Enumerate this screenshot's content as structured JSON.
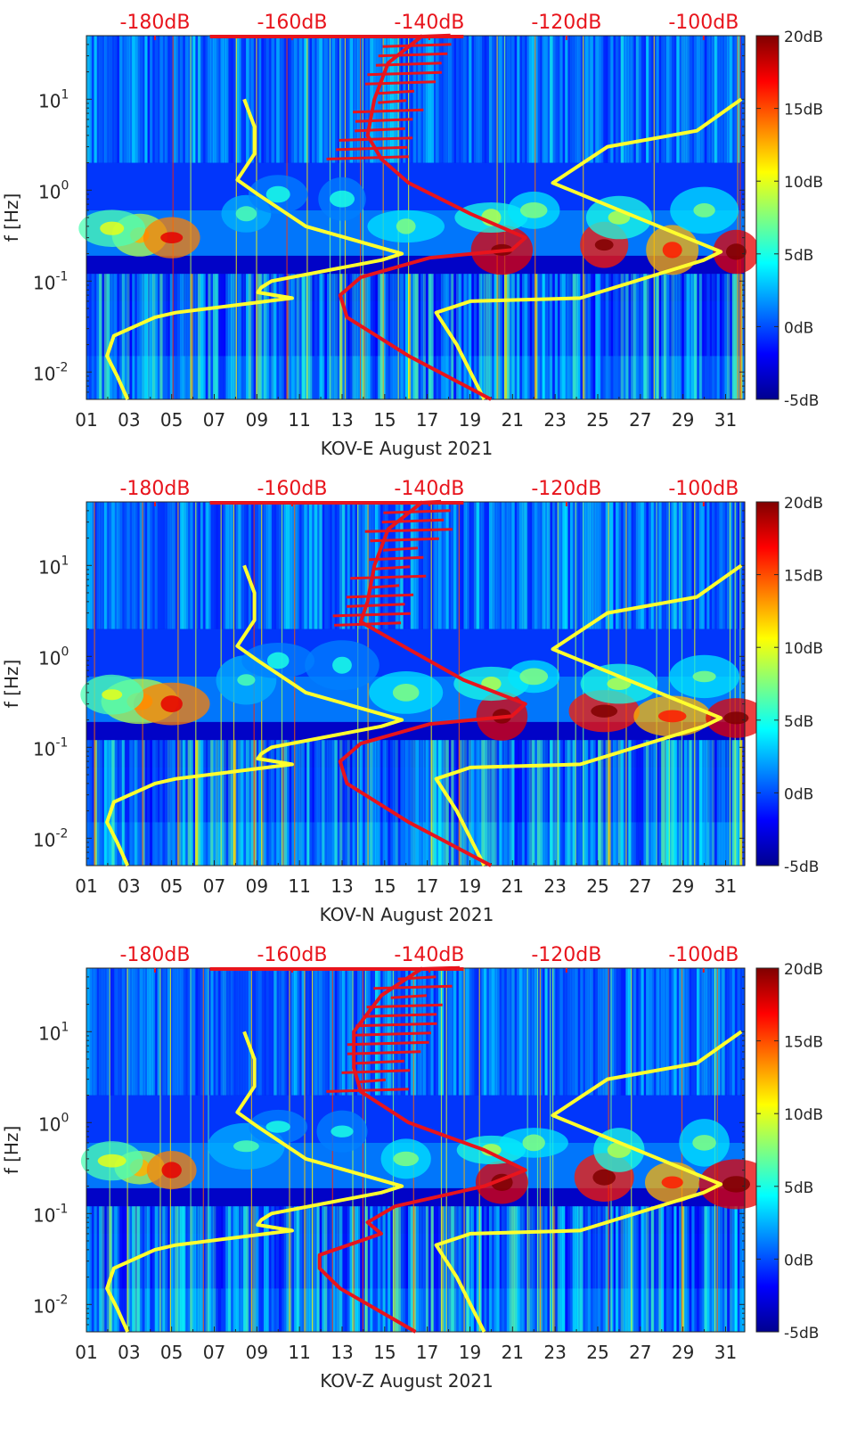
{
  "figure": {
    "colors": {
      "background": "#ffffff",
      "axis": "#262626",
      "noise_model": "#ffff2e",
      "psd_curve": "#e8141c",
      "top_labels": "#e8141c"
    }
  },
  "colorbar": {
    "ticks": [
      "20dB",
      "15dB",
      "10dB",
      "5dB",
      "0dB",
      "-5dB"
    ],
    "range_db": [
      -5,
      20
    ]
  },
  "chart_data": [
    {
      "type": "heatmap",
      "title": "",
      "xlabel": "KOV-E August 2021",
      "ylabel": "f [Hz]",
      "x_ticks": [
        "01",
        "03",
        "05",
        "07",
        "09",
        "11",
        "13",
        "15",
        "17",
        "19",
        "21",
        "23",
        "25",
        "27",
        "29",
        "31"
      ],
      "x_range_days": [
        1,
        31.9
      ],
      "y_scale": "log",
      "y_range_hz": [
        0.005,
        50
      ],
      "y_ticks": [
        {
          "value": 0.01,
          "base": "10",
          "exp": "-2"
        },
        {
          "value": 0.1,
          "base": "10",
          "exp": "-1"
        },
        {
          "value": 1,
          "base": "10",
          "exp": "0"
        },
        {
          "value": 10,
          "base": "10",
          "exp": "1"
        }
      ],
      "top_axis_ticks": [
        "-180dB",
        "-160dB",
        "-140dB",
        "-120dB",
        "-100dB"
      ],
      "top_axis_range_db": [
        -190,
        -94
      ],
      "series": [
        {
          "name": "noise model (yellow, top axis dB)",
          "points": [
            {
              "db": -184,
              "f": 0.005
            },
            {
              "db": -185.5,
              "f": 0.009
            },
            {
              "db": -187,
              "f": 0.015
            },
            {
              "db": -186,
              "f": 0.025
            },
            {
              "db": -180,
              "f": 0.04
            },
            {
              "db": -177,
              "f": 0.045
            },
            {
              "db": -160,
              "f": 0.065
            },
            {
              "db": -165,
              "f": 0.075
            },
            {
              "db": -164.5,
              "f": 0.085
            },
            {
              "db": -163,
              "f": 0.1
            },
            {
              "db": -147,
              "f": 0.17
            },
            {
              "db": -144,
              "f": 0.2
            },
            {
              "db": -158,
              "f": 0.4
            },
            {
              "db": -165,
              "f": 0.9
            },
            {
              "db": -168,
              "f": 1.3
            },
            {
              "db": -165.5,
              "f": 2.5
            },
            {
              "db": -165.5,
              "f": 5
            },
            {
              "db": -167,
              "f": 10
            }
          ]
        },
        {
          "name": "noise model (yellow, top axis dB) right",
          "points": [
            {
              "db": -132,
              "f": 0.005
            },
            {
              "db": -136,
              "f": 0.02
            },
            {
              "db": -139,
              "f": 0.045
            },
            {
              "db": -134,
              "f": 0.06
            },
            {
              "db": -118,
              "f": 0.065
            },
            {
              "db": -100,
              "f": 0.17
            },
            {
              "db": -97.5,
              "f": 0.21
            },
            {
              "db": -122,
              "f": 1.2
            },
            {
              "db": -114,
              "f": 3
            },
            {
              "db": -101,
              "f": 4.5
            },
            {
              "db": -94.5,
              "f": 10
            }
          ]
        },
        {
          "name": "PSD (red, top axis dB)",
          "points": [
            {
              "db": -131,
              "f": 0.005
            },
            {
              "db": -143,
              "f": 0.015
            },
            {
              "db": -152,
              "f": 0.04
            },
            {
              "db": -153,
              "f": 0.07
            },
            {
              "db": -150,
              "f": 0.11
            },
            {
              "db": -140,
              "f": 0.18
            },
            {
              "db": -128,
              "f": 0.22
            },
            {
              "db": -126,
              "f": 0.3
            },
            {
              "db": -134,
              "f": 0.55
            },
            {
              "db": -143,
              "f": 1.2
            },
            {
              "db": -147,
              "f": 2.2
            },
            {
              "db": -149,
              "f": 4
            },
            {
              "db": -148,
              "f": 10
            },
            {
              "db": -146,
              "f": 25
            },
            {
              "db": -141,
              "f": 50
            }
          ]
        }
      ]
    },
    {
      "type": "heatmap",
      "title": "",
      "xlabel": "KOV-N August 2021",
      "ylabel": "f [Hz]",
      "x_ticks": [
        "01",
        "03",
        "05",
        "07",
        "09",
        "11",
        "13",
        "15",
        "17",
        "19",
        "21",
        "23",
        "25",
        "27",
        "29",
        "31"
      ],
      "x_range_days": [
        1,
        31.9
      ],
      "y_scale": "log",
      "y_range_hz": [
        0.005,
        50
      ],
      "y_ticks": [
        {
          "value": 0.01,
          "base": "10",
          "exp": "-2"
        },
        {
          "value": 0.1,
          "base": "10",
          "exp": "-1"
        },
        {
          "value": 1,
          "base": "10",
          "exp": "0"
        },
        {
          "value": 10,
          "base": "10",
          "exp": "1"
        }
      ],
      "top_axis_ticks": [
        "-180dB",
        "-160dB",
        "-140dB",
        "-120dB",
        "-100dB"
      ],
      "top_axis_range_db": [
        -190,
        -94
      ],
      "series": [
        {
          "name": "noise model (yellow, top axis dB)",
          "points": [
            {
              "db": -184,
              "f": 0.005
            },
            {
              "db": -185.5,
              "f": 0.009
            },
            {
              "db": -187,
              "f": 0.015
            },
            {
              "db": -186,
              "f": 0.025
            },
            {
              "db": -180,
              "f": 0.04
            },
            {
              "db": -177,
              "f": 0.045
            },
            {
              "db": -160,
              "f": 0.065
            },
            {
              "db": -165,
              "f": 0.075
            },
            {
              "db": -164.5,
              "f": 0.085
            },
            {
              "db": -163,
              "f": 0.1
            },
            {
              "db": -147,
              "f": 0.17
            },
            {
              "db": -144,
              "f": 0.2
            },
            {
              "db": -158,
              "f": 0.4
            },
            {
              "db": -165,
              "f": 0.9
            },
            {
              "db": -168,
              "f": 1.3
            },
            {
              "db": -165.5,
              "f": 2.5
            },
            {
              "db": -165.5,
              "f": 5
            },
            {
              "db": -167,
              "f": 10
            }
          ]
        },
        {
          "name": "noise model (yellow, top axis dB) right",
          "points": [
            {
              "db": -132,
              "f": 0.005
            },
            {
              "db": -136,
              "f": 0.02
            },
            {
              "db": -139,
              "f": 0.045
            },
            {
              "db": -134,
              "f": 0.06
            },
            {
              "db": -118,
              "f": 0.065
            },
            {
              "db": -100,
              "f": 0.17
            },
            {
              "db": -97.5,
              "f": 0.21
            },
            {
              "db": -122,
              "f": 1.2
            },
            {
              "db": -114,
              "f": 3
            },
            {
              "db": -101,
              "f": 4.5
            },
            {
              "db": -94.5,
              "f": 10
            }
          ]
        },
        {
          "name": "PSD (red, top axis dB)",
          "points": [
            {
              "db": -131,
              "f": 0.005
            },
            {
              "db": -143,
              "f": 0.015
            },
            {
              "db": -152,
              "f": 0.04
            },
            {
              "db": -153,
              "f": 0.07
            },
            {
              "db": -150,
              "f": 0.11
            },
            {
              "db": -140,
              "f": 0.18
            },
            {
              "db": -128,
              "f": 0.22
            },
            {
              "db": -126,
              "f": 0.3
            },
            {
              "db": -135,
              "f": 0.55
            },
            {
              "db": -143,
              "f": 1.2
            },
            {
              "db": -150,
              "f": 2.4
            },
            {
              "db": -149,
              "f": 4
            },
            {
              "db": -148,
              "f": 10
            },
            {
              "db": -146,
              "f": 25
            },
            {
              "db": -141,
              "f": 50
            }
          ]
        }
      ]
    },
    {
      "type": "heatmap",
      "title": "",
      "xlabel": "KOV-Z August 2021",
      "ylabel": "f [Hz]",
      "x_ticks": [
        "01",
        "03",
        "05",
        "07",
        "09",
        "11",
        "13",
        "15",
        "17",
        "19",
        "21",
        "23",
        "25",
        "27",
        "29",
        "31"
      ],
      "x_range_days": [
        1,
        31.9
      ],
      "y_scale": "log",
      "y_range_hz": [
        0.005,
        50
      ],
      "y_ticks": [
        {
          "value": 0.01,
          "base": "10",
          "exp": "-2"
        },
        {
          "value": 0.1,
          "base": "10",
          "exp": "-1"
        },
        {
          "value": 1,
          "base": "10",
          "exp": "0"
        },
        {
          "value": 10,
          "base": "10",
          "exp": "1"
        }
      ],
      "top_axis_ticks": [
        "-180dB",
        "-160dB",
        "-140dB",
        "-120dB",
        "-100dB"
      ],
      "top_axis_range_db": [
        -190,
        -94
      ],
      "series": [
        {
          "name": "noise model (yellow, top axis dB)",
          "points": [
            {
              "db": -184,
              "f": 0.005
            },
            {
              "db": -185.5,
              "f": 0.009
            },
            {
              "db": -187,
              "f": 0.015
            },
            {
              "db": -186,
              "f": 0.025
            },
            {
              "db": -180,
              "f": 0.04
            },
            {
              "db": -177,
              "f": 0.045
            },
            {
              "db": -160,
              "f": 0.065
            },
            {
              "db": -165,
              "f": 0.075
            },
            {
              "db": -164.5,
              "f": 0.085
            },
            {
              "db": -163,
              "f": 0.1
            },
            {
              "db": -147,
              "f": 0.17
            },
            {
              "db": -144,
              "f": 0.2
            },
            {
              "db": -158,
              "f": 0.4
            },
            {
              "db": -165,
              "f": 0.9
            },
            {
              "db": -168,
              "f": 1.3
            },
            {
              "db": -165.5,
              "f": 2.5
            },
            {
              "db": -165.5,
              "f": 5
            },
            {
              "db": -167,
              "f": 10
            }
          ]
        },
        {
          "name": "noise model (yellow, top axis dB) right",
          "points": [
            {
              "db": -132,
              "f": 0.005
            },
            {
              "db": -136,
              "f": 0.02
            },
            {
              "db": -139,
              "f": 0.045
            },
            {
              "db": -134,
              "f": 0.06
            },
            {
              "db": -118,
              "f": 0.065
            },
            {
              "db": -100,
              "f": 0.17
            },
            {
              "db": -97.5,
              "f": 0.21
            },
            {
              "db": -122,
              "f": 1.2
            },
            {
              "db": -114,
              "f": 3
            },
            {
              "db": -101,
              "f": 4.5
            },
            {
              "db": -94.5,
              "f": 10
            }
          ]
        },
        {
          "name": "PSD (red, top axis dB)",
          "points": [
            {
              "db": -142,
              "f": 0.005
            },
            {
              "db": -153,
              "f": 0.015
            },
            {
              "db": -156,
              "f": 0.025
            },
            {
              "db": -156,
              "f": 0.035
            },
            {
              "db": -147,
              "f": 0.06
            },
            {
              "db": -149,
              "f": 0.08
            },
            {
              "db": -145,
              "f": 0.12
            },
            {
              "db": -132,
              "f": 0.2
            },
            {
              "db": -126,
              "f": 0.3
            },
            {
              "db": -132,
              "f": 0.5
            },
            {
              "db": -143,
              "f": 1.0
            },
            {
              "db": -150,
              "f": 2.2
            },
            {
              "db": -151,
              "f": 4
            },
            {
              "db": -151,
              "f": 10
            },
            {
              "db": -147,
              "f": 25
            },
            {
              "db": -141,
              "f": 50
            }
          ]
        }
      ]
    }
  ]
}
